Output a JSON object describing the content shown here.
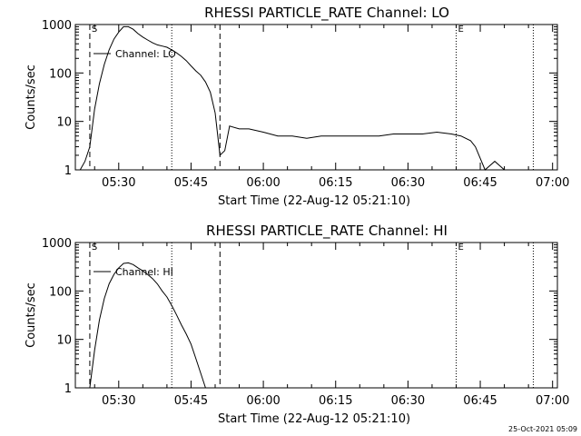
{
  "footer": {
    "timestamp": "25-Oct-2021 05:09"
  },
  "colors": {
    "background": "#ffffff",
    "foreground": "#000000"
  },
  "chart_data": [
    {
      "type": "line",
      "title": "RHESSI PARTICLE_RATE Channel: LO",
      "xlabel": "Start Time (22-Aug-12 05:21:10)",
      "ylabel": "Counts/sec",
      "y_scale": "log",
      "xlim": [
        "05:21",
        "07:01"
      ],
      "ylim": [
        1,
        1000
      ],
      "x_ticks": [
        "05:30",
        "05:45",
        "06:00",
        "06:15",
        "06:30",
        "06:45",
        "07:00"
      ],
      "y_ticks": [
        "1",
        "10",
        "100",
        "1000"
      ],
      "legend": {
        "placement": "top-left",
        "entries": [
          "Channel: LO"
        ]
      },
      "markers": [
        {
          "label": "S",
          "time": "05:24",
          "style": "dashed"
        },
        {
          "label": "",
          "time": "05:41",
          "style": "dotted"
        },
        {
          "label": "",
          "time": "05:51",
          "style": "dashed"
        },
        {
          "label": "E",
          "time": "06:40",
          "style": "dotted"
        },
        {
          "label": "",
          "time": "06:56",
          "style": "dotted"
        }
      ],
      "series": [
        {
          "name": "Channel: LO",
          "x": [
            "05:22",
            "05:23",
            "05:24",
            "05:25",
            "05:26",
            "05:27",
            "05:28",
            "05:29",
            "05:30",
            "05:31",
            "05:32",
            "05:33",
            "05:34",
            "05:35",
            "05:36",
            "05:37",
            "05:38",
            "05:39",
            "05:40",
            "05:41",
            "05:42",
            "05:43",
            "05:44",
            "05:45",
            "05:46",
            "05:47",
            "05:48",
            "05:49",
            "05:50",
            "05:51",
            "05:52",
            "05:53",
            "05:55",
            "05:57",
            "06:00",
            "06:03",
            "06:06",
            "06:09",
            "06:12",
            "06:15",
            "06:18",
            "06:21",
            "06:24",
            "06:27",
            "06:30",
            "06:33",
            "06:36",
            "06:39",
            "06:41",
            "06:43",
            "06:44",
            "06:46",
            "06:48",
            "06:50"
          ],
          "y": [
            1,
            1.5,
            3,
            18,
            60,
            150,
            300,
            500,
            700,
            900,
            900,
            800,
            650,
            550,
            480,
            420,
            380,
            360,
            340,
            300,
            260,
            220,
            180,
            140,
            110,
            90,
            65,
            40,
            15,
            2,
            2.5,
            8,
            7,
            7,
            6,
            5,
            5,
            4.5,
            5,
            5,
            5,
            5,
            5,
            5.5,
            5.5,
            5.5,
            6,
            5.5,
            5,
            4,
            3,
            1,
            1.5,
            1
          ]
        }
      ]
    },
    {
      "type": "line",
      "title": "RHESSI PARTICLE_RATE Channel: HI",
      "xlabel": "Start Time (22-Aug-12 05:21:10)",
      "ylabel": "Counts/sec",
      "y_scale": "log",
      "xlim": [
        "05:21",
        "07:01"
      ],
      "ylim": [
        1,
        1000
      ],
      "x_ticks": [
        "05:30",
        "05:45",
        "06:00",
        "06:15",
        "06:30",
        "06:45",
        "07:00"
      ],
      "y_ticks": [
        "1",
        "10",
        "100",
        "1000"
      ],
      "legend": {
        "placement": "top-left",
        "entries": [
          "Channel: HI"
        ]
      },
      "markers": [
        {
          "label": "S",
          "time": "05:24",
          "style": "dashed"
        },
        {
          "label": "",
          "time": "05:41",
          "style": "dotted"
        },
        {
          "label": "",
          "time": "05:51",
          "style": "dashed"
        },
        {
          "label": "E",
          "time": "06:40",
          "style": "dotted"
        },
        {
          "label": "",
          "time": "06:56",
          "style": "dotted"
        }
      ],
      "series": [
        {
          "name": "Channel: HI",
          "x": [
            "05:24",
            "05:25",
            "05:26",
            "05:27",
            "05:28",
            "05:29",
            "05:30",
            "05:31",
            "05:32",
            "05:33",
            "05:34",
            "05:35",
            "05:36",
            "05:37",
            "05:38",
            "05:39",
            "05:40",
            "05:41",
            "05:42",
            "05:43",
            "05:44",
            "05:45",
            "05:46",
            "05:47",
            "05:48"
          ],
          "y": [
            1,
            6,
            25,
            70,
            140,
            220,
            300,
            370,
            380,
            350,
            300,
            260,
            220,
            180,
            140,
            100,
            75,
            50,
            32,
            20,
            13,
            8,
            4,
            2,
            1
          ]
        }
      ]
    }
  ]
}
